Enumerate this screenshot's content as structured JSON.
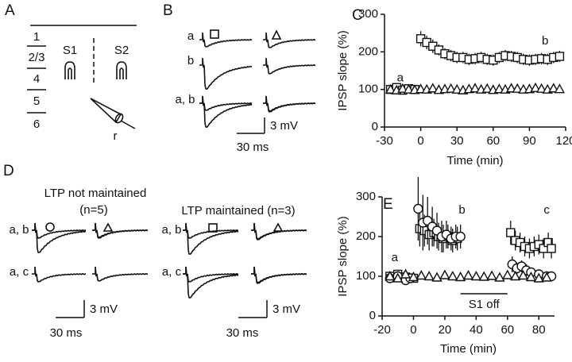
{
  "panel_a": {
    "label": "A",
    "layers": [
      "1",
      "2/3",
      "4",
      "5",
      "6"
    ],
    "sites": [
      "S1",
      "S2"
    ],
    "electrode": "r"
  },
  "panel_b": {
    "label": "B",
    "rows": [
      "a",
      "b",
      "a, b"
    ],
    "scale_y": "3 mV",
    "scale_x": "30 ms"
  },
  "panel_d": {
    "label": "D",
    "groups": [
      {
        "title": "LTP not maintained",
        "subtitle": "(n=5)",
        "rows": [
          "a, b",
          "a, c"
        ],
        "scale_y": "3 mV",
        "scale_x": "30 ms"
      },
      {
        "title": "LTP maintained (n=3)",
        "rows": [
          "a, b",
          "a, c"
        ],
        "scale_y": "3 mV",
        "scale_x": "30 ms"
      }
    ]
  },
  "chart_data": [
    {
      "type": "scatter",
      "panel_label": "C",
      "y_label": "IPSP slope (%)",
      "x_label": "Time (min)",
      "xlim": [
        -30,
        120
      ],
      "xticks": [
        -30,
        0,
        30,
        60,
        90,
        120
      ],
      "ylim": [
        0,
        300
      ],
      "yticks": [
        0,
        100,
        200,
        300
      ],
      "annotations": [
        {
          "text": "a",
          "x": -17,
          "y": 130
        },
        {
          "text": "b",
          "x": 103,
          "y": 228
        }
      ],
      "series": [
        {
          "marker": "square",
          "color": "#111111",
          "x": [
            -25,
            -20,
            -15,
            -10,
            -5,
            0,
            5,
            10,
            15,
            20,
            25,
            30,
            35,
            40,
            45,
            50,
            55,
            60,
            65,
            70,
            75,
            80,
            85,
            90,
            95,
            100,
            105,
            110,
            115
          ],
          "values": [
            100,
            105,
            98,
            102,
            100,
            235,
            225,
            215,
            205,
            195,
            190,
            185,
            185,
            180,
            182,
            185,
            180,
            178,
            185,
            190,
            188,
            185,
            180,
            178,
            180,
            182,
            180,
            185,
            188
          ],
          "errors": [
            8,
            8,
            8,
            8,
            8,
            20,
            18,
            18,
            15,
            15,
            15,
            15,
            15,
            15,
            15,
            15,
            15,
            15,
            15,
            15,
            15,
            15,
            15,
            15,
            15,
            15,
            15,
            15,
            15
          ]
        },
        {
          "marker": "triangle",
          "color": "#111111",
          "x": [
            -25,
            -20,
            -15,
            -10,
            -5,
            0,
            5,
            10,
            15,
            20,
            25,
            30,
            35,
            40,
            45,
            50,
            55,
            60,
            65,
            70,
            75,
            80,
            85,
            90,
            95,
            100,
            105,
            110,
            115
          ],
          "values": [
            100,
            98,
            102,
            100,
            99,
            101,
            100,
            103,
            99,
            101,
            102,
            100,
            98,
            101,
            103,
            100,
            102,
            99,
            101,
            100,
            103,
            102,
            100,
            101,
            104,
            102,
            100,
            103,
            101
          ]
        }
      ]
    },
    {
      "type": "scatter",
      "panel_label": "E",
      "y_label": "IPSP slope (%)",
      "x_label": "Time (min)",
      "xlim": [
        -20,
        90
      ],
      "xticks": [
        -20,
        0,
        20,
        40,
        60,
        80
      ],
      "ylim": [
        0,
        300
      ],
      "yticks": [
        0,
        100,
        200,
        300
      ],
      "annotations": [
        {
          "text": "a",
          "x": -12,
          "y": 146
        },
        {
          "text": "b",
          "x": 31,
          "y": 266
        },
        {
          "text": "c",
          "x": 85,
          "y": 266
        }
      ],
      "period": {
        "text": "S1 off",
        "x": [
          30,
          60
        ],
        "y": 56
      },
      "series": [
        {
          "marker": "square",
          "color": "#111111",
          "x": [
            -15,
            -10,
            -5,
            0,
            4,
            7,
            10,
            13,
            16,
            19,
            22,
            25,
            28,
            62,
            65,
            68,
            71,
            74,
            77,
            80,
            83,
            86,
            88
          ],
          "values": [
            100,
            105,
            98,
            95,
            220,
            215,
            205,
            210,
            200,
            195,
            200,
            190,
            195,
            210,
            190,
            185,
            175,
            170,
            175,
            180,
            170,
            185,
            170
          ],
          "errors": [
            10,
            10,
            10,
            10,
            45,
            40,
            40,
            35,
            35,
            35,
            30,
            30,
            30,
            30,
            25,
            25,
            25,
            25,
            25,
            25,
            25,
            25,
            25
          ]
        },
        {
          "marker": "circle",
          "color": "#111111",
          "x": [
            -15,
            -10,
            -5,
            -2,
            3,
            6,
            9,
            12,
            15,
            18,
            21,
            24,
            27,
            30,
            63,
            66,
            69,
            72,
            75,
            80,
            85,
            88
          ],
          "values": [
            95,
            100,
            90,
            95,
            270,
            235,
            240,
            225,
            215,
            200,
            205,
            195,
            200,
            200,
            130,
            120,
            125,
            115,
            110,
            105,
            100,
            100
          ],
          "errors": [
            10,
            10,
            10,
            10,
            80,
            70,
            60,
            50,
            45,
            40,
            35,
            30,
            30,
            30,
            20,
            15,
            15,
            15,
            10,
            10,
            10,
            10
          ]
        },
        {
          "marker": "triangle",
          "color": "#111111",
          "x": [
            -15,
            -10,
            -5,
            0,
            5,
            10,
            15,
            20,
            25,
            30,
            35,
            40,
            45,
            50,
            55,
            60,
            65,
            70,
            75,
            80,
            85
          ],
          "values": [
            100,
            95,
            105,
            98,
            102,
            100,
            97,
            103,
            100,
            98,
            102,
            100,
            99,
            101,
            97,
            103,
            100,
            102,
            98,
            95,
            97
          ]
        }
      ]
    }
  ]
}
